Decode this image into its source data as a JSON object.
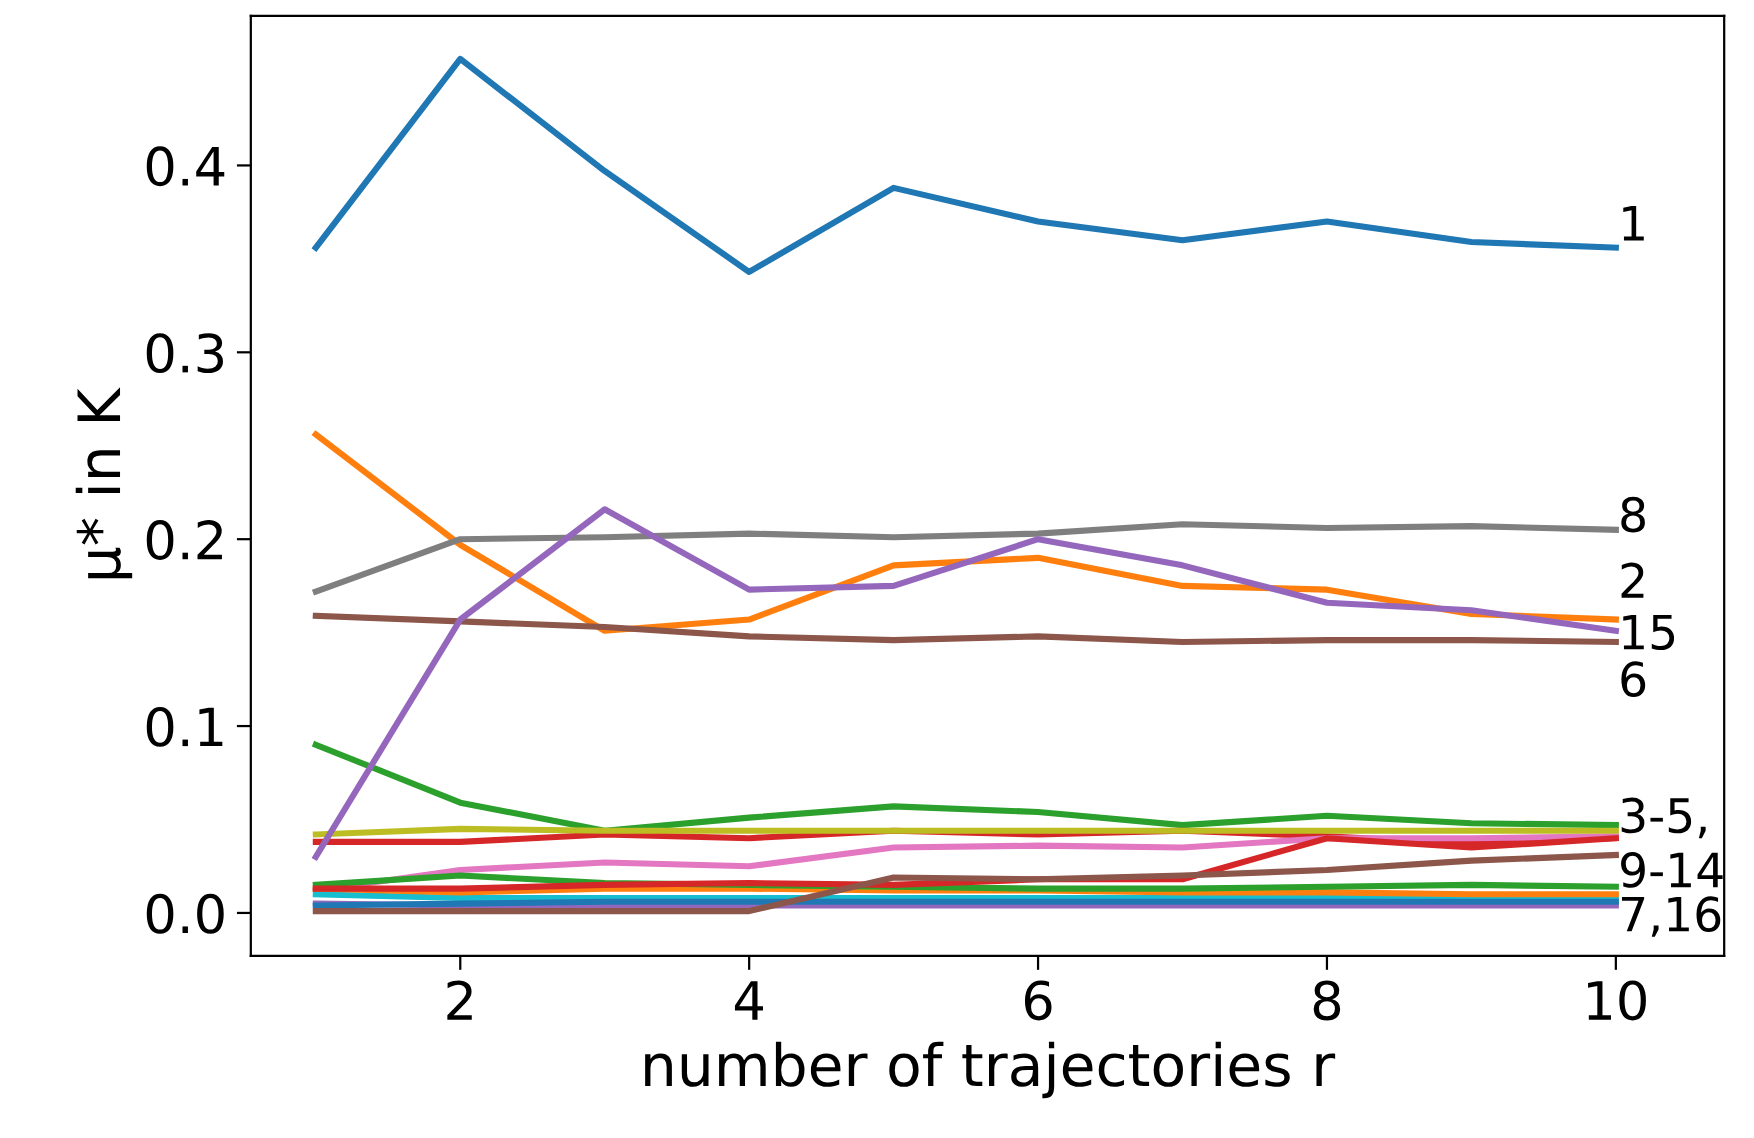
{
  "chart_data": {
    "type": "line",
    "xlabel": "number of trajectories r",
    "ylabel": "μ* in K",
    "x": [
      1,
      2,
      3,
      4,
      5,
      6,
      7,
      8,
      9,
      10
    ],
    "series": [
      {
        "color": "#1f77b4",
        "values": [
          0.356,
          0.457,
          0.397,
          0.343,
          0.388,
          0.37,
          0.36,
          0.37,
          0.359,
          0.356
        ]
      },
      {
        "color": "#ff7f0e",
        "values": [
          0.256,
          0.197,
          0.151,
          0.157,
          0.186,
          0.19,
          0.175,
          0.173,
          0.16,
          0.157
        ]
      },
      {
        "color": "#2ca02c",
        "values": [
          0.09,
          0.059,
          0.044,
          0.051,
          0.057,
          0.054,
          0.047,
          0.052,
          0.048,
          0.047
        ]
      },
      {
        "color": "#d62728",
        "values": [
          0.038,
          0.038,
          0.042,
          0.04,
          0.044,
          0.042,
          0.044,
          0.041,
          0.037,
          0.04
        ]
      },
      {
        "color": "#9467bd",
        "values": [
          0.005,
          0.004,
          0.004,
          0.004,
          0.004,
          0.004,
          0.004,
          0.004,
          0.004,
          0.004
        ]
      },
      {
        "color": "#8c564b",
        "values": [
          0.159,
          0.156,
          0.153,
          0.148,
          0.146,
          0.148,
          0.145,
          0.146,
          0.146,
          0.145
        ]
      },
      {
        "color": "#e377c2",
        "values": [
          0.012,
          0.023,
          0.027,
          0.025,
          0.035,
          0.036,
          0.035,
          0.04,
          0.04,
          0.041
        ]
      },
      {
        "color": "#7f7f7f",
        "values": [
          0.172,
          0.2,
          0.201,
          0.203,
          0.201,
          0.203,
          0.208,
          0.206,
          0.207,
          0.205
        ]
      },
      {
        "color": "#bcbd22",
        "values": [
          0.042,
          0.045,
          0.044,
          0.044,
          0.044,
          0.044,
          0.044,
          0.044,
          0.044,
          0.044
        ]
      },
      {
        "color": "#17becf",
        "values": [
          0.01,
          0.008,
          0.008,
          0.008,
          0.008,
          0.008,
          0.008,
          0.008,
          0.008,
          0.008
        ]
      },
      {
        "color": "#1f77b4",
        "values": [
          0.004,
          0.005,
          0.006,
          0.006,
          0.006,
          0.006,
          0.006,
          0.006,
          0.006,
          0.006
        ]
      },
      {
        "color": "#ff7f0e",
        "values": [
          0.013,
          0.011,
          0.013,
          0.013,
          0.012,
          0.012,
          0.011,
          0.011,
          0.01,
          0.01
        ]
      },
      {
        "color": "#2ca02c",
        "values": [
          0.015,
          0.02,
          0.016,
          0.015,
          0.014,
          0.013,
          0.013,
          0.014,
          0.015,
          0.014
        ]
      },
      {
        "color": "#d62728",
        "values": [
          0.013,
          0.013,
          0.015,
          0.016,
          0.015,
          0.018,
          0.018,
          0.04,
          0.035,
          0.04
        ]
      },
      {
        "color": "#9467bd",
        "values": [
          0.03,
          0.157,
          0.216,
          0.173,
          0.175,
          0.2,
          0.186,
          0.166,
          0.162,
          0.151
        ]
      },
      {
        "color": "#8c564b",
        "values": [
          0.001,
          0.001,
          0.001,
          0.001,
          0.019,
          0.018,
          0.02,
          0.023,
          0.028,
          0.031
        ]
      }
    ],
    "annotations": [
      "1",
      "8",
      "2",
      "15",
      "6",
      "3-5,",
      "9-14",
      "7,16"
    ],
    "xlim": [
      0.55,
      10.75
    ],
    "ylim": [
      -0.023,
      0.48
    ],
    "xticks": [
      2,
      4,
      6,
      8,
      10
    ],
    "yticks": [
      {
        "value": 0.0,
        "label": "0.0"
      },
      0.1,
      0.2,
      0.3,
      0.4
    ],
    "grid": false,
    "legend": false,
    "marker": "none",
    "line_style": "solid"
  }
}
